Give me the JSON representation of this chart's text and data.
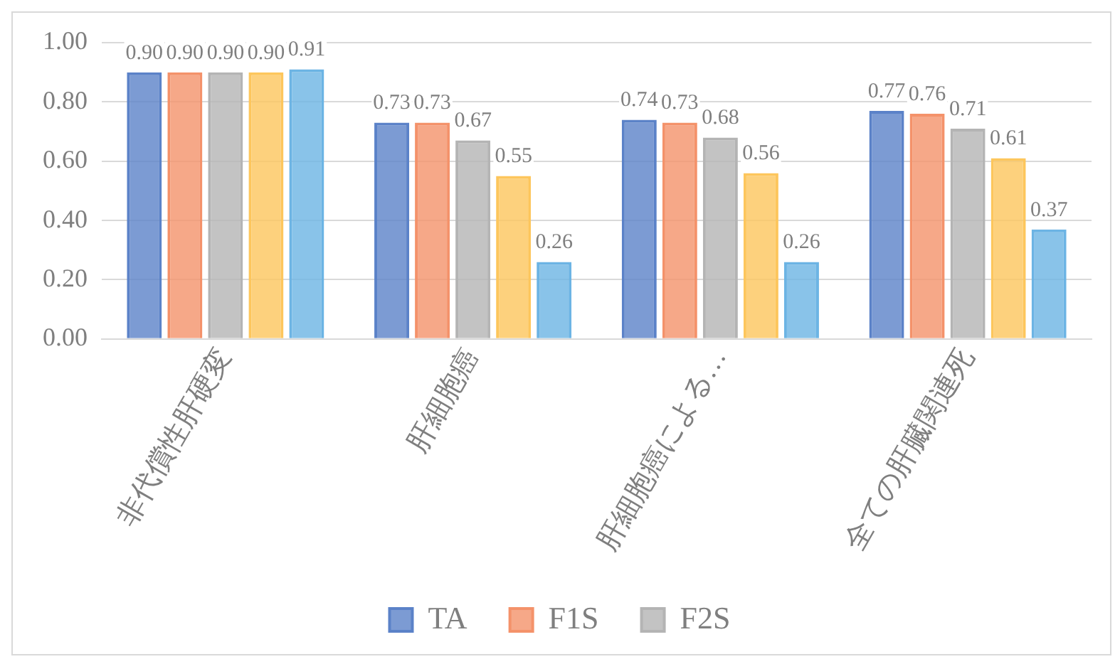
{
  "chart_data": {
    "type": "bar",
    "categories": [
      "非代償性肝硬変",
      "肝細胞癌",
      "肝細胞癌による…",
      "全ての肝臓関連死"
    ],
    "series": [
      {
        "name": "TA",
        "color": "#5b82c8",
        "values": [
          0.9,
          0.73,
          0.74,
          0.77
        ],
        "value_labels": [
          "0.90",
          "0.73",
          "0.74",
          "0.77"
        ]
      },
      {
        "name": "F1S",
        "color": "#f4926a",
        "values": [
          0.9,
          0.73,
          0.73,
          0.76
        ],
        "value_labels": [
          "0.90",
          "0.73",
          "0.73",
          "0.76"
        ]
      },
      {
        "name": "F2S",
        "color": "#b4b4b4",
        "values": [
          0.9,
          0.67,
          0.68,
          0.71
        ],
        "value_labels": [
          "0.90",
          "0.67",
          "0.68",
          "0.71"
        ]
      },
      {
        "color": "#fdc65c",
        "values": [
          0.9,
          0.55,
          0.56,
          0.61
        ],
        "value_labels": [
          "0.90",
          "0.55",
          "0.56",
          "0.61"
        ]
      },
      {
        "color": "#6cb4e4",
        "values": [
          0.91,
          0.26,
          0.26,
          0.37
        ],
        "value_labels": [
          "0.91",
          "0.26",
          "0.26",
          "0.37"
        ]
      }
    ],
    "ylim": [
      0,
      1
    ],
    "yticks": [
      {
        "value": 0,
        "label": "0.00"
      },
      {
        "value": 0.2,
        "label": "0.20"
      },
      {
        "value": 0.4,
        "label": "0.40"
      },
      {
        "value": 0.6,
        "label": "0.60"
      },
      {
        "value": 0.8,
        "label": "0.80"
      },
      {
        "value": 1,
        "label": "1.00"
      }
    ],
    "grid": "y",
    "legend": "bottom"
  }
}
